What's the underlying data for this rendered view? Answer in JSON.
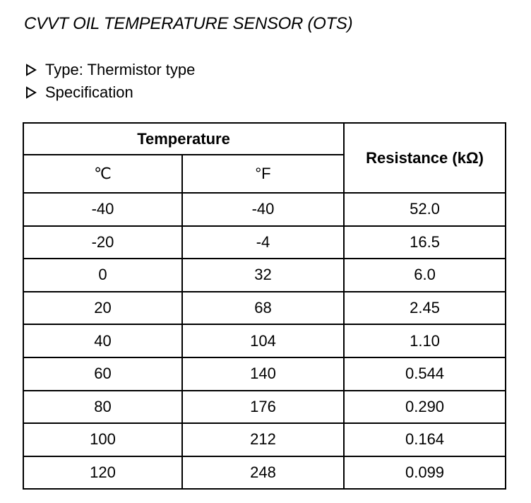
{
  "header": {
    "title": "CVVT OIL TEMPERATURE SENSOR (OTS)"
  },
  "bullets": [
    "Type: Thermistor type",
    "Specification"
  ],
  "table": {
    "group_header": "Temperature",
    "resistance_header": "Resistance (kΩ)",
    "unit_headers": [
      "℃",
      "°F"
    ],
    "rows": [
      [
        "-40",
        "-40",
        "52.0"
      ],
      [
        "-20",
        "-4",
        "16.5"
      ],
      [
        "0",
        "32",
        "6.0"
      ],
      [
        "20",
        "68",
        "2.45"
      ],
      [
        "40",
        "104",
        "1.10"
      ],
      [
        "60",
        "140",
        "0.544"
      ],
      [
        "80",
        "176",
        "0.290"
      ],
      [
        "100",
        "212",
        "0.164"
      ],
      [
        "120",
        "248",
        "0.099"
      ]
    ]
  }
}
